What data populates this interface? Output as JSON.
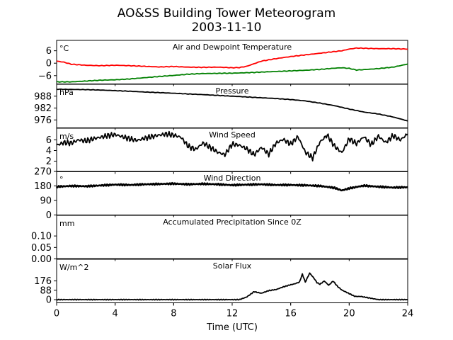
{
  "title": "AO&SS Building Tower Meteorogram",
  "subtitle": "2003-11-10",
  "xlabel": "Time (UTC)",
  "chart_data": {
    "type": "line",
    "title": "AO&SS Building Tower Meteorogram 2003-11-10",
    "xlabel": "Time (UTC)",
    "xlim": [
      0,
      24
    ],
    "xticks": [
      0,
      4,
      8,
      12,
      16,
      20,
      24
    ],
    "panels": [
      {
        "name": "temperature",
        "title": "Air and Dewpoint Temperature",
        "unit": "°C",
        "ylim": [
          -10,
          11
        ],
        "yticks": [
          6,
          0,
          -6
        ],
        "ytick_labels": [
          "6",
          "0",
          "−6"
        ],
        "series": [
          {
            "name": "Air Temperature",
            "color": "#ff0000",
            "x": [
              0,
              0.5,
              1,
              2,
              3,
              4,
              5,
              6,
              7,
              8,
              9,
              10,
              11,
              12,
              12.5,
              13,
              14,
              15,
              16,
              17,
              18,
              19,
              19.5,
              20,
              20.5,
              21,
              22,
              23,
              24
            ],
            "y": [
              1,
              0.5,
              -0.5,
              -1,
              -1.2,
              -1,
              -1.2,
              -1.5,
              -1.8,
              -1.6,
              -1.9,
              -2,
              -1.9,
              -2.2,
              -2.1,
              -1.5,
              1,
              2.2,
              3.2,
              4,
              4.8,
              5.6,
              6,
              6.8,
              7.3,
              7.2,
              7,
              7,
              6.8
            ]
          },
          {
            "name": "Dewpoint",
            "color": "#008000",
            "x": [
              0,
              1,
              2,
              3,
              4,
              5,
              6,
              7,
              8,
              9,
              10,
              11,
              12,
              13,
              14,
              15,
              16,
              17,
              18,
              19,
              19.5,
              20,
              20.5,
              21,
              22,
              23,
              24
            ],
            "y": [
              -9,
              -9,
              -8.6,
              -8.2,
              -8,
              -7.6,
              -7,
              -6.4,
              -5.9,
              -5.3,
              -5,
              -4.9,
              -4.8,
              -4.6,
              -4.3,
              -4,
              -3.7,
              -3.4,
              -3,
              -2.4,
              -2.2,
              -2.5,
              -3.3,
              -3.1,
              -2.6,
              -1.9,
              -0.4
            ]
          }
        ]
      },
      {
        "name": "pressure",
        "title": "Pressure",
        "unit": "hPa",
        "ylim": [
          972,
          994
        ],
        "yticks": [
          988,
          982,
          976
        ],
        "ytick_labels": [
          "988",
          "982",
          "976"
        ],
        "series": [
          {
            "name": "Pressure",
            "color": "#000000",
            "x": [
              0,
              1,
              2,
              3,
              4,
              5,
              6,
              7,
              8,
              9,
              10,
              11,
              12,
              13,
              14,
              15,
              16,
              17,
              18,
              19,
              20,
              21,
              22,
              23,
              24
            ],
            "y": [
              991.5,
              991.4,
              991.3,
              991.1,
              990.8,
              990.5,
              990.1,
              989.8,
              989.5,
              989.1,
              988.8,
              988.4,
              988,
              987.6,
              987.2,
              986.8,
              986.3,
              985.6,
              984.5,
              983.2,
              981.5,
              980,
              979,
              977.5,
              975.5
            ]
          }
        ]
      },
      {
        "name": "wind_speed",
        "title": "Wind Speed",
        "unit": "m/s",
        "ylim": [
          0,
          8.2
        ],
        "yticks": [
          6,
          4,
          2
        ],
        "ytick_labels": [
          "6",
          "4",
          "2"
        ],
        "series": [
          {
            "name": "Wind Speed",
            "color": "#000000",
            "x": [
              0,
              0.5,
              1,
              1.5,
              2,
              2.5,
              3,
              3.5,
              4,
              4.5,
              5,
              5.5,
              6,
              6.5,
              7,
              7.5,
              8,
              8.5,
              9,
              9.5,
              10,
              10.5,
              11,
              11.5,
              12,
              12.5,
              13,
              13.5,
              14,
              14.5,
              15,
              15.5,
              16,
              16.5,
              17,
              17.5,
              18,
              18.5,
              19,
              19.5,
              20,
              20.5,
              21,
              21.5,
              22,
              22.5,
              23,
              23.5,
              24
            ],
            "y": [
              5,
              5.5,
              5.4,
              6,
              5.8,
              6.2,
              6.5,
              6.8,
              7,
              6.6,
              6.2,
              5.9,
              6.3,
              6.6,
              6.9,
              7.1,
              6.9,
              6.5,
              4.8,
              4.2,
              5.4,
              4.6,
              3.7,
              3.2,
              5.2,
              5,
              4.3,
              3.2,
              4.6,
              3.3,
              5.4,
              6.1,
              5.2,
              6.6,
              3.7,
              2.6,
              5.6,
              6.9,
              4.8,
              3.6,
              6.2,
              5.3,
              6.6,
              5.1,
              6.7,
              5.5,
              6.8,
              6,
              7.1
            ]
          }
        ]
      },
      {
        "name": "wind_direction",
        "title": "Wind Direction",
        "unit": "°",
        "ylim": [
          0,
          270
        ],
        "yticks": [
          270,
          180,
          90,
          0
        ],
        "ytick_labels": [
          "270",
          "180",
          "90",
          "0"
        ],
        "series": [
          {
            "name": "Wind Direction",
            "color": "#000000",
            "x": [
              0,
              1,
              2,
              3,
              4,
              5,
              6,
              7,
              8,
              9,
              10,
              11,
              12,
              13,
              14,
              15,
              16,
              17,
              18,
              19,
              19.5,
              20,
              21,
              22,
              23,
              24
            ],
            "y": [
              175,
              180,
              178,
              183,
              188,
              186,
              190,
              192,
              194,
              190,
              193,
              190,
              185,
              188,
              190,
              186,
              186,
              184,
              180,
              168,
              152,
              165,
              182,
              175,
              170,
              172
            ]
          }
        ]
      },
      {
        "name": "precipitation",
        "title": "Accumulated Precipitation Since 0Z",
        "unit": "mm",
        "ylim": [
          0,
          0.19
        ],
        "yticks": [
          0.1,
          0.05,
          0.0
        ],
        "ytick_labels": [
          "0.10",
          "0.05",
          "0.00"
        ],
        "series": [
          {
            "name": "Accumulated Precipitation",
            "color": "#000000",
            "x": [
              0,
              24
            ],
            "y": [
              0,
              0
            ]
          }
        ]
      },
      {
        "name": "solar_flux",
        "title": "Solar Flux",
        "unit": "W/m^2",
        "ylim": [
          -30,
          380
        ],
        "yticks": [
          176,
          88,
          0
        ],
        "ytick_labels": [
          "176",
          "88",
          "0"
        ],
        "series": [
          {
            "name": "Solar Flux",
            "color": "#000000",
            "x": [
              0,
              12.5,
              13,
              13.5,
              14,
              14.5,
              15,
              15.5,
              16,
              16.3,
              16.6,
              16.8,
              17,
              17.3,
              17.6,
              17.8,
              18,
              18.3,
              18.6,
              18.9,
              19.2,
              19.5,
              19.8,
              20.1,
              20.4,
              20.8,
              21.2,
              21.6,
              22,
              24
            ],
            "y": [
              0,
              0,
              25,
              75,
              60,
              85,
              95,
              120,
              140,
              150,
              165,
              240,
              165,
              250,
              200,
              160,
              145,
              175,
              135,
              175,
              125,
              90,
              70,
              50,
              30,
              30,
              20,
              10,
              0,
              0
            ]
          }
        ]
      }
    ]
  }
}
